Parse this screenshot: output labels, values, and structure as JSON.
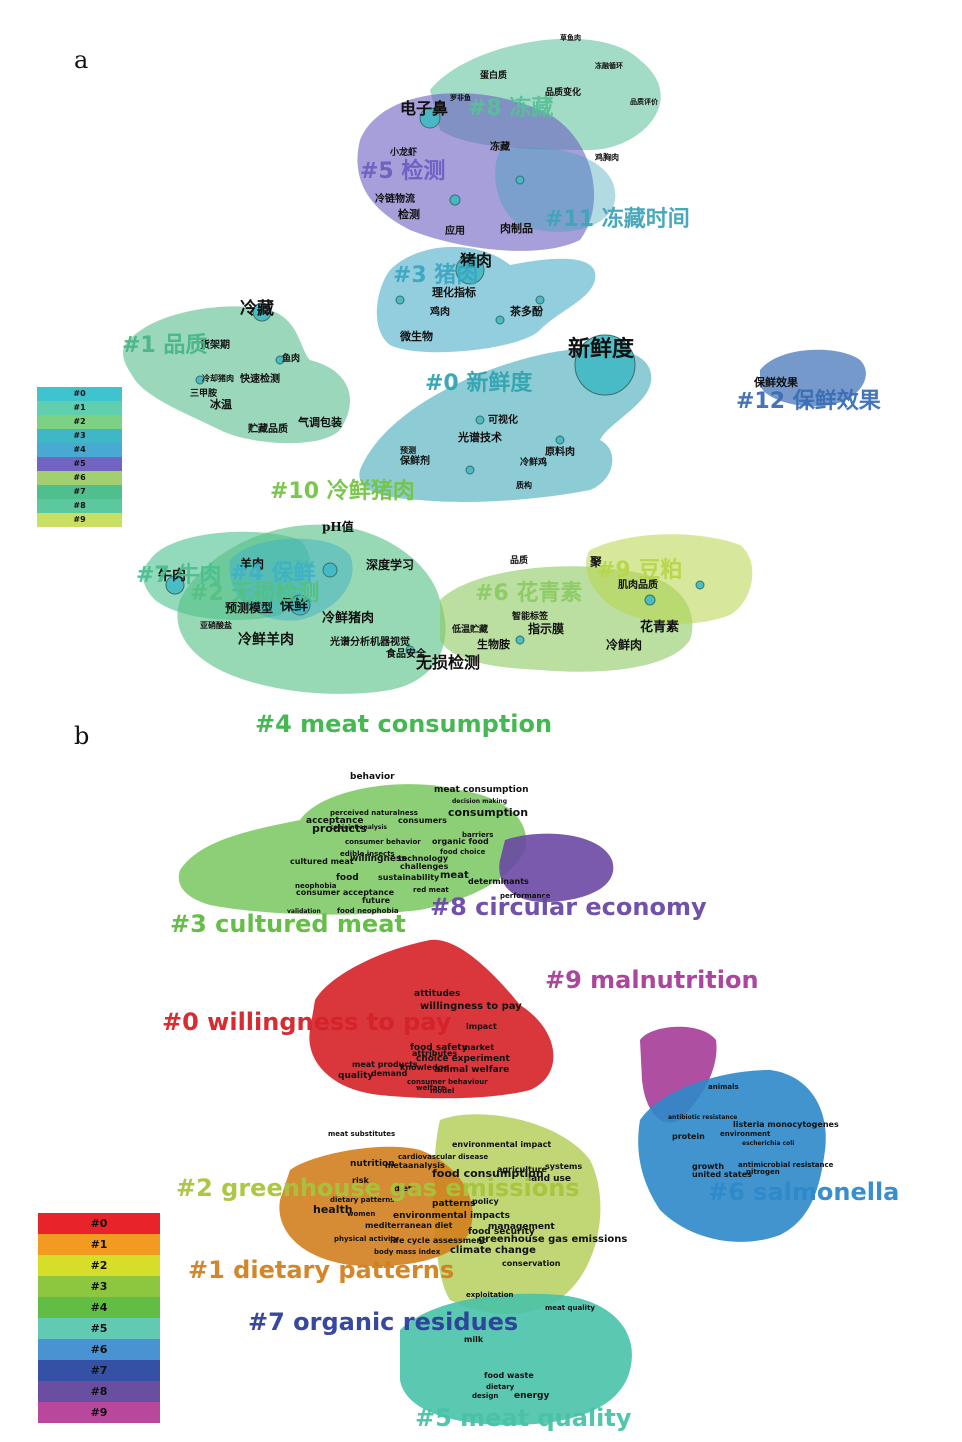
{
  "panels": [
    {
      "id": "a",
      "letter": "a",
      "legend": [
        "#0",
        "#1",
        "#2",
        "#3",
        "#4",
        "#5",
        "#6",
        "#7",
        "#8",
        "#9"
      ],
      "legend_colors": [
        "#3fc4cf",
        "#5fcfb0",
        "#7cd282",
        "#3fb7c7",
        "#4aa9d2",
        "#7264c2",
        "#a2cf6f",
        "#4fbf8e",
        "#5cc89e",
        "#c8df62"
      ],
      "clusters": [
        {
          "id": "c8",
          "label": "#8 冻藏",
          "color": "#57c098"
        },
        {
          "id": "c5",
          "label": "#5 检测",
          "color": "#6b5fc2"
        },
        {
          "id": "c11",
          "label": "#11 冻藏时间",
          "color": "#3fa3b8"
        },
        {
          "id": "c3",
          "label": "#3 猪肉",
          "color": "#3aa6c2"
        },
        {
          "id": "c1",
          "label": "#1 品质",
          "color": "#48b684"
        },
        {
          "id": "c0",
          "label": "#0 新鲜度",
          "color": "#30a3b0"
        },
        {
          "id": "c12",
          "label": "#12 保鲜效果",
          "color": "#3a6db5"
        },
        {
          "id": "c10",
          "label": "#10 冷鲜猪肉",
          "color": "#74c345"
        },
        {
          "id": "c7",
          "label": "#7 牛肉",
          "color": "#4bbf8e"
        },
        {
          "id": "c4",
          "label": "#4 保鲜",
          "color": "#3eb2c6"
        },
        {
          "id": "c2",
          "label": "#2 无损检测",
          "color": "#54c083"
        },
        {
          "id": "c6",
          "label": "#6 花青素",
          "color": "#8cc963"
        },
        {
          "id": "c9",
          "label": "#9 豆粕",
          "color": "#b7d64a"
        }
      ],
      "terms": [
        "草鱼肉",
        "冻融循环",
        "蛋白质",
        "品质变化",
        "品质评价",
        "电子鼻",
        "罗非鱼",
        "冻藏",
        "小龙虾",
        "鸡胸肉",
        "冷链物流",
        "检测",
        "应用",
        "肉制品",
        "猪肉",
        "理化指标",
        "鸡肉",
        "茶多酚",
        "微生物",
        "冷藏",
        "货架期",
        "鱼肉",
        "冷却猪肉",
        "快速检测",
        "三甲胺",
        "冰温",
        "气调包装",
        "贮藏品质",
        "新鲜度",
        "可视化",
        "光谱技术",
        "原料肉",
        "保鲜效果",
        "pH值",
        "羊肉",
        "深度学习",
        "牛肉",
        "预测模型",
        "保鲜",
        "冷鲜猪肉",
        "冷鲜羊肉",
        "光谱分析机器视觉",
        "无损检测",
        "聚",
        "肌肉品质",
        "指示膜",
        "生物胺",
        "花青素",
        "冷鲜肉",
        "智能标签",
        "品质",
        "预测",
        "保鲜剂",
        "冷鲜鸡",
        "质构",
        "低温贮藏",
        "亚硝酸盐",
        "食品安全",
        "冷鲜牛肉"
      ]
    },
    {
      "id": "b",
      "letter": "b",
      "legend": [
        "#0",
        "#1",
        "#2",
        "#3",
        "#4",
        "#5",
        "#6",
        "#7",
        "#8",
        "#9"
      ],
      "legend_colors": [
        "#e8242a",
        "#f39a20",
        "#d6de2a",
        "#8dc63f",
        "#62bd45",
        "#62c9b3",
        "#4a93d3",
        "#3551a5",
        "#6a4ea2",
        "#b9479b"
      ],
      "clusters": [
        {
          "id": "c4",
          "label": "#4 meat consumption",
          "color": "#3cb44a"
        },
        {
          "id": "c3",
          "label": "#3 cultured meat",
          "color": "#5dbb3c"
        },
        {
          "id": "c8",
          "label": "#8 circular economy",
          "color": "#6a48a3"
        },
        {
          "id": "c9",
          "label": "#9 malnutrition",
          "color": "#a53c98"
        },
        {
          "id": "c0",
          "label": "#0 willingness to pay",
          "color": "#d62128"
        },
        {
          "id": "c2",
          "label": "#2 greenhouse gas emissions",
          "color": "#a7c43b"
        },
        {
          "id": "c6",
          "label": "#6 salmonella",
          "color": "#2e88c9"
        },
        {
          "id": "c1",
          "label": "#1 dietary patterns",
          "color": "#d1801f"
        },
        {
          "id": "c7",
          "label": "#7 organic residues",
          "color": "#2d3d9a"
        },
        {
          "id": "c5",
          "label": "#5 meat quality",
          "color": "#49c2a8"
        }
      ],
      "terms": [
        "behavior",
        "meat consumption",
        "decision making",
        "consumption",
        "perceived naturalness",
        "acceptance",
        "products",
        "conjoint analysis",
        "consumers",
        "consumer behavior",
        "barriers",
        "organic food",
        "food choice",
        "edible insects",
        "cultured meat",
        "willingness",
        "technology",
        "challenges",
        "meat",
        "food",
        "neophobia",
        "sustainability",
        "consumer acceptance",
        "red meat",
        "future",
        "validation",
        "food neophobia",
        "determinants",
        "performance",
        "attitudes",
        "willingness to pay",
        "impact",
        "food safety",
        "market",
        "attributes",
        "choice experiment",
        "meat products",
        "knowledge",
        "animal welfare",
        "quality",
        "demand",
        "consumer behaviour",
        "model",
        "welfare",
        "meat substitutes",
        "environmental impact",
        "cardiovascular disease",
        "nutrition",
        "metaanalysis",
        "food consumption",
        "agriculture",
        "systems",
        "land use",
        "risk",
        "diet",
        "patterns",
        "policy",
        "dietary patterns",
        "health",
        "women",
        "environmental impacts",
        "food security",
        "mediterranean diet",
        "management",
        "physical activity",
        "life cycle assessment",
        "greenhouse gas emissions",
        "body mass index",
        "climate change",
        "conservation",
        "animals",
        "antibiotic resistance",
        "listeria monocytogenes",
        "environment",
        "protein",
        "escherichia coli",
        "growth",
        "antimicrobial resistance",
        "united states",
        "nitrogen",
        "exploitation",
        "meat quality",
        "milk",
        "food waste",
        "dietary",
        "energy",
        "design"
      ]
    }
  ]
}
